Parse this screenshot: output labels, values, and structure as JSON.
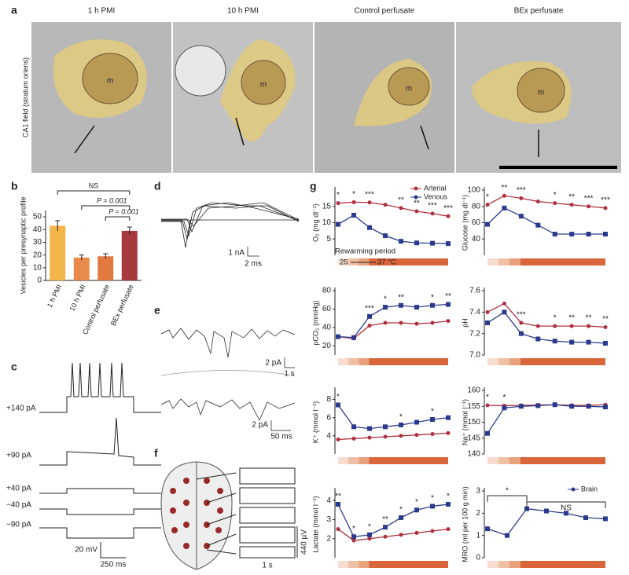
{
  "panel_a": {
    "label": "a",
    "titles": [
      "1 h PMI",
      "10 h PMI",
      "Control perfusate",
      "BEx perfusate"
    ],
    "y_label": "CA1 field (stratum oriens)",
    "marker": "m"
  },
  "panel_b_label": "b",
  "panel_c": {
    "label": "c",
    "currents": [
      "+140 pA",
      "+90 pA",
      "+40 pA",
      "−40 pA",
      "−90 pA"
    ],
    "scale_y": "20 mV",
    "scale_x": "250 ms"
  },
  "panel_d": {
    "label": "d",
    "scale_y": "1 nA",
    "scale_x": "2 ms"
  },
  "panel_e": {
    "label": "e",
    "scale_y1": "2 pA",
    "scale_x1": "1 s",
    "scale_y2": "2 pA",
    "scale_x2": "50 ms"
  },
  "panel_f": {
    "label": "f",
    "scale_x": "1 s",
    "scale_y": "440 µV"
  },
  "panel_g": {
    "label": "g",
    "rewarming": "Rewarming period",
    "temp_from": "25",
    "temp_to": "37 °C"
  },
  "chart_data": [
    {
      "type": "bar",
      "y_label": "Vesicles per presynaptic profile",
      "categories": [
        "1 h PMI",
        "10 h PMI",
        "Control perfusate",
        "BEx perfusate"
      ],
      "values": [
        43,
        18,
        19,
        39
      ],
      "errors": [
        4,
        2,
        2,
        3
      ],
      "colors": [
        "#f2b54a",
        "#e88a4c",
        "#e07a40",
        "#a63a3e"
      ],
      "ylim": [
        0,
        55
      ],
      "yticks": [
        0,
        10,
        20,
        30,
        40,
        50
      ],
      "annotations": [
        "NS",
        "P = 0.001",
        "P = 0.001"
      ]
    },
    {
      "type": "line",
      "y_label": "O₂ (mg dl⁻¹)",
      "ylim": [
        0,
        20
      ],
      "yticks": [
        5,
        10,
        15
      ],
      "legend": "upper right",
      "series": [
        {
          "name": "Arterial",
          "color": "#b03040",
          "values": [
            16,
            16.3,
            16.2,
            15.5,
            14.5,
            13.5,
            12.8,
            12
          ]
        },
        {
          "name": "Venous",
          "color": "#2b3a8c",
          "values": [
            9.5,
            12.3,
            8.5,
            6,
            4.3,
            3.8,
            3.7,
            3.6
          ]
        }
      ],
      "stars": [
        "*",
        "*",
        "***",
        null,
        "**",
        "**",
        "***",
        "***"
      ]
    },
    {
      "type": "line",
      "y_label": "Glucose (mg dl⁻¹)",
      "ylim": [
        20,
        100
      ],
      "yticks": [
        40,
        60,
        80,
        100
      ],
      "series": [
        {
          "color": "#b03040",
          "values": [
            82,
            93,
            90,
            86,
            84,
            82,
            80,
            78
          ]
        },
        {
          "color": "#2b3a8c",
          "values": [
            58,
            78,
            68,
            57,
            46,
            46,
            46,
            46
          ]
        }
      ],
      "stars": [
        "*",
        "**",
        "***",
        null,
        "*",
        "**",
        "***",
        "***"
      ]
    },
    {
      "type": "line",
      "y_label": "pCO₂ (mmHg)",
      "ylim": [
        10,
        80
      ],
      "yticks": [
        20,
        40,
        60,
        80
      ],
      "series": [
        {
          "color": "#b03040",
          "values": [
            30,
            28,
            42,
            45,
            45,
            44,
            45,
            47
          ]
        },
        {
          "color": "#2b3a8c",
          "values": [
            30,
            29,
            52,
            62,
            64,
            62,
            64,
            65
          ]
        }
      ],
      "stars": [
        null,
        null,
        "***",
        "*",
        "**",
        null,
        "*",
        "**"
      ]
    },
    {
      "type": "line",
      "y_label": "pH",
      "ylim": [
        7.0,
        7.6
      ],
      "yticks": [
        {
          "value": 7.0,
          "label": "7.0"
        },
        {
          "value": 7.2,
          "label": "7.2"
        },
        {
          "value": 7.4,
          "label": "7.4"
        },
        {
          "value": 7.6,
          "label": "7.6"
        }
      ],
      "series": [
        {
          "color": "#b03040",
          "values": [
            7.4,
            7.48,
            7.3,
            7.27,
            7.27,
            7.27,
            7.27,
            7.26
          ]
        },
        {
          "color": "#2b3a8c",
          "values": [
            7.3,
            7.4,
            7.2,
            7.15,
            7.13,
            7.12,
            7.12,
            7.11
          ]
        }
      ],
      "stars": [
        null,
        null,
        "***",
        null,
        "*",
        "**",
        "**",
        "**"
      ]
    },
    {
      "type": "line",
      "y_label": "K⁺ (mmol l⁻¹)",
      "ylim": [
        2,
        9
      ],
      "yticks": [
        4,
        6,
        8
      ],
      "series": [
        {
          "color": "#b03040",
          "values": [
            3.6,
            3.7,
            3.8,
            3.9,
            4.0,
            4.1,
            4.2,
            4.3
          ]
        },
        {
          "color": "#2b3a8c",
          "values": [
            7.4,
            5,
            4.8,
            5,
            5.2,
            5.5,
            5.8,
            6
          ]
        }
      ],
      "stars": [
        "*",
        null,
        null,
        null,
        "*",
        null,
        "*",
        null
      ]
    },
    {
      "type": "line",
      "y_label": "Na⁺ (mmol l⁻¹)",
      "ylim": [
        140,
        160
      ],
      "yticks": [
        140,
        145,
        150,
        155,
        160
      ],
      "series": [
        {
          "color": "#b03040",
          "values": [
            155.3,
            155.2,
            155.3,
            155.4,
            155.5,
            155.3,
            155.3,
            155.5
          ]
        },
        {
          "color": "#2b3a8c",
          "values": [
            146.5,
            154.5,
            155,
            155.2,
            155.5,
            155,
            155,
            154.8
          ]
        }
      ],
      "stars": [
        "*",
        "*",
        null,
        null,
        null,
        null,
        null,
        null
      ]
    },
    {
      "type": "line",
      "y_label": "Lactate (mmol l⁻¹)",
      "ylim": [
        1,
        4.5
      ],
      "yticks": [
        2,
        3,
        4
      ],
      "series": [
        {
          "color": "#b03040",
          "values": [
            2.5,
            1.9,
            2,
            2.1,
            2.2,
            2.3,
            2.4,
            2.5
          ]
        },
        {
          "color": "#2b3a8c",
          "values": [
            3.8,
            2.1,
            2.2,
            2.6,
            3.1,
            3.5,
            3.7,
            3.8
          ]
        }
      ],
      "stars": [
        "**",
        "*",
        "*",
        "**",
        "*",
        "*",
        "*",
        "*"
      ]
    },
    {
      "type": "line",
      "y_label": "MRO (ml per 100 g min)",
      "ylim": [
        0,
        3
      ],
      "yticks": [
        0,
        1,
        2,
        3
      ],
      "legend": "upper right",
      "series": [
        {
          "name": "Brain",
          "color": "#2b3a8c",
          "values": [
            1.3,
            1.0,
            2.2,
            2.1,
            2.0,
            1.8,
            1.75
          ]
        }
      ],
      "annotations": [
        "*",
        "NS"
      ]
    }
  ]
}
